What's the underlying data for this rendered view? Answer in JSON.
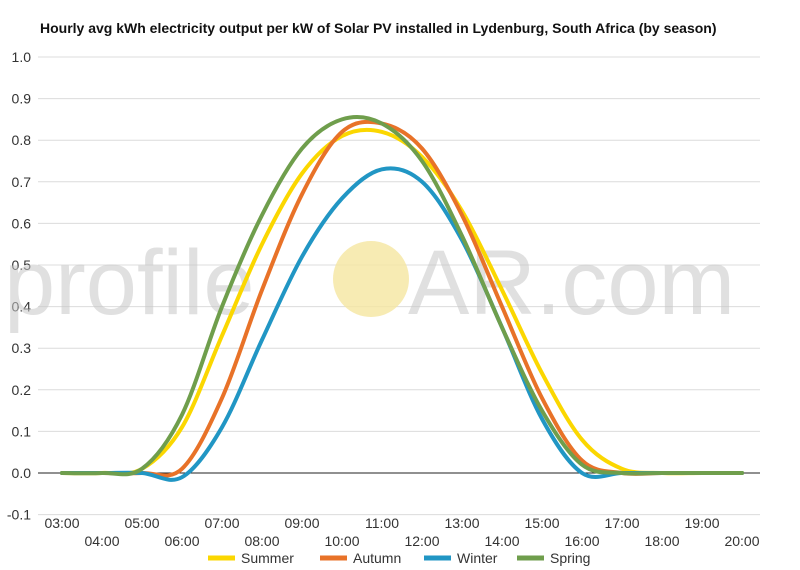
{
  "chart_data": {
    "type": "line",
    "title": "Hourly avg kWh electricity output per kW of Solar PV installed in Lydenburg, South Africa (by season)",
    "xlabel": "",
    "ylabel": "",
    "ylim": [
      -0.1,
      1.0
    ],
    "xlim_hours": [
      2.5,
      20.5
    ],
    "yticks": [
      "1.0",
      "0.9",
      "0.8",
      "0.7",
      "0.6",
      "0.5",
      "0.4",
      "0.3",
      "0.2",
      "0.1",
      "0.0",
      "-0.1"
    ],
    "x_tick_labels": [
      "03:00",
      "04:00",
      "05:00",
      "06:00",
      "07:00",
      "08:00",
      "09:00",
      "10:00",
      "11:00",
      "12:00",
      "13:00",
      "14:00",
      "15:00",
      "16:00",
      "17:00",
      "18:00",
      "19:00",
      "20:00"
    ],
    "x": [
      "03:00",
      "04:00",
      "05:00",
      "06:00",
      "07:00",
      "08:00",
      "09:00",
      "10:00",
      "11:00",
      "12:00",
      "13:00",
      "14:00",
      "15:00",
      "16:00",
      "17:00",
      "18:00",
      "19:00",
      "20:00"
    ],
    "grid": true,
    "legend_position": "bottom-center",
    "series": [
      {
        "name": "Summer",
        "color": "#fbd700",
        "values": [
          0,
          0,
          0.01,
          0.11,
          0.33,
          0.55,
          0.72,
          0.81,
          0.82,
          0.76,
          0.63,
          0.44,
          0.24,
          0.08,
          0.01,
          0,
          0,
          0
        ]
      },
      {
        "name": "Autumn",
        "color": "#e87228",
        "values": [
          0,
          0,
          0,
          0.01,
          0.18,
          0.44,
          0.67,
          0.82,
          0.84,
          0.78,
          0.62,
          0.4,
          0.18,
          0.03,
          0,
          0,
          0,
          0
        ]
      },
      {
        "name": "Winter",
        "color": "#2196c4",
        "values": [
          0,
          0,
          0,
          -0.01,
          0.11,
          0.32,
          0.52,
          0.66,
          0.73,
          0.7,
          0.56,
          0.35,
          0.13,
          0,
          0,
          0,
          0,
          0
        ]
      },
      {
        "name": "Spring",
        "color": "#6f9e4c",
        "values": [
          0,
          0,
          0.01,
          0.14,
          0.4,
          0.62,
          0.78,
          0.85,
          0.84,
          0.75,
          0.57,
          0.35,
          0.15,
          0.02,
          0,
          0,
          0,
          0
        ]
      }
    ]
  },
  "watermark": {
    "left": "profile",
    "right": "AR.com",
    "sun_color": "#f5e6a0"
  }
}
